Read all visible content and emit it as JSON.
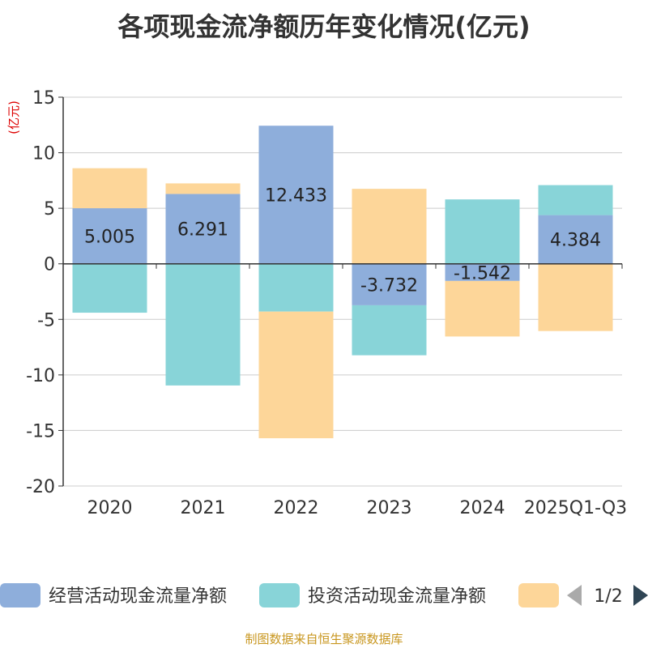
{
  "title": "各项现金流净额历年变化情况(亿元)",
  "source_note": "制图数据来自恒生聚源数据库",
  "legend_pager": "1/2",
  "colors": {
    "operating": "#8eaedb",
    "investing": "#88d4d8",
    "financing": "#fdd699",
    "axis": "#333333",
    "grid": "#cccccc",
    "unit": "#dd0000",
    "pager_inactive": "#aaaaaa",
    "pager_active": "#2f4554"
  },
  "chart_data": {
    "type": "bar",
    "stacked": true,
    "unit_label": "(亿元)",
    "ylim": [
      -20,
      15
    ],
    "yticks": [
      15,
      10,
      5,
      0,
      -5,
      -10,
      -15,
      -20
    ],
    "ytick_labels": [
      "15",
      "10",
      "5",
      "0",
      "-5",
      "-10",
      "-15",
      "-20"
    ],
    "categories": [
      "2020",
      "2021",
      "2022",
      "2023",
      "2024",
      "2025Q1-Q3"
    ],
    "series": [
      {
        "key": "operating",
        "name": "经营活动现金流量净额",
        "values": [
          5.005,
          6.291,
          12.433,
          -3.732,
          -1.542,
          4.384
        ],
        "labels": [
          "5.005",
          "6.291",
          "12.433",
          "-3.732",
          "-1.542",
          "4.384"
        ]
      },
      {
        "key": "investing",
        "name": "投资活动现金流量净额",
        "values": [
          -4.4,
          -10.95,
          -4.3,
          -4.5,
          5.8,
          2.7
        ]
      },
      {
        "key": "financing",
        "name": "",
        "values": [
          3.6,
          0.95,
          -11.4,
          6.75,
          -5.0,
          -6.05
        ]
      }
    ]
  }
}
